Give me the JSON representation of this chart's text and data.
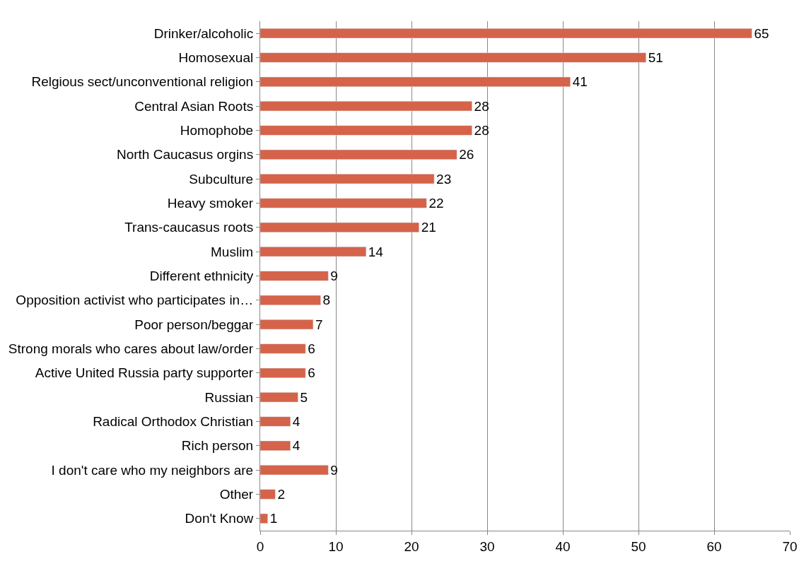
{
  "chart_data": {
    "type": "bar",
    "orientation": "horizontal",
    "categories": [
      "Drinker/alcoholic",
      "Homosexual",
      "Relgious sect/unconventional religion",
      "Central Asian Roots",
      "Homophobe",
      "North Caucasus orgins",
      "Subculture",
      "Heavy smoker",
      "Trans-caucasus roots",
      "Muslim",
      "Different ethnicity",
      "Opposition activist who participates in…",
      "Poor person/beggar",
      "Strong morals who cares about law/order",
      "Active United Russia party supporter",
      "Russian",
      "Radical Orthodox Christian",
      "Rich person",
      "I don't care who my neighbors are",
      "Other",
      "Don't Know"
    ],
    "values": [
      65,
      51,
      41,
      28,
      28,
      26,
      23,
      22,
      21,
      14,
      9,
      8,
      7,
      6,
      6,
      5,
      4,
      4,
      9,
      2,
      1
    ],
    "color": "#d4634a",
    "xlim": [
      0,
      70
    ],
    "xticks": [
      0,
      10,
      20,
      30,
      40,
      50,
      60,
      70
    ],
    "grid": "x",
    "data_labels": true
  }
}
